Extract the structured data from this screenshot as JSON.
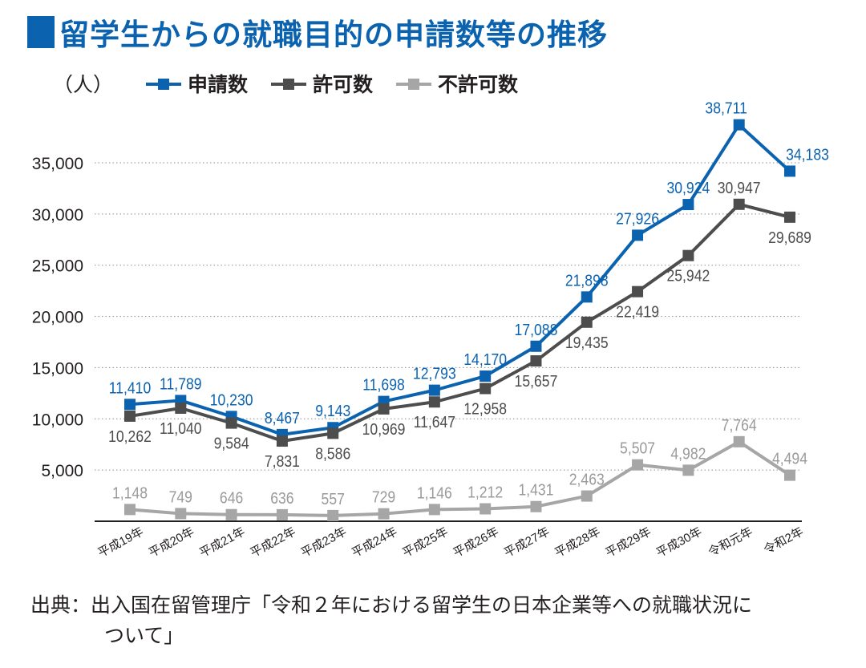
{
  "title": "留学生からの就職目的の申請数等の推移",
  "footer": {
    "line1": "出典：出入国在留管理庁「令和２年における留学生の日本企業等への就職状況に",
    "line2": "ついて」"
  },
  "chart_data": {
    "type": "line",
    "title": "留学生からの就職目的の申請数等の推移",
    "ylabel": "（人）",
    "xlabel": "",
    "ylim": [
      0,
      35000
    ],
    "yticks": [
      5000,
      10000,
      15000,
      20000,
      25000,
      30000,
      35000
    ],
    "ytick_labels": [
      "5,000",
      "10,000",
      "15,000",
      "20,000",
      "25,000",
      "30,000",
      "35,000"
    ],
    "grid": "horizontal-dotted",
    "legend": "top",
    "categories": [
      "平成19年",
      "平成20年",
      "平成21年",
      "平成22年",
      "平成23年",
      "平成24年",
      "平成25年",
      "平成26年",
      "平成27年",
      "平成28年",
      "平成29年",
      "平成30年",
      "令和元年",
      "令和2年"
    ],
    "series": [
      {
        "name": "申請数",
        "color": "#0b63b0",
        "label_color": "#0b63b0",
        "values": [
          11410,
          11789,
          10230,
          8467,
          9143,
          11698,
          12793,
          14170,
          17088,
          21898,
          27926,
          30924,
          38711,
          34183
        ],
        "labels": [
          "11,410",
          "11,789",
          "10,230",
          "8,467",
          "9,143",
          "11,698",
          "12,793",
          "14,170",
          "17,088",
          "21,898",
          "27,926",
          "30,924",
          "38,711",
          "34,183"
        ]
      },
      {
        "name": "許可数",
        "color": "#4d4d4d",
        "label_color": "#4d4d4d",
        "values": [
          10262,
          11040,
          9584,
          7831,
          8586,
          10969,
          11647,
          12958,
          15657,
          19435,
          22419,
          25942,
          30947,
          29689
        ],
        "labels": [
          "10,262",
          "11,040",
          "9,584",
          "7,831",
          "8,586",
          "10,969",
          "11,647",
          "12,958",
          "15,657",
          "19,435",
          "22,419",
          "25,942",
          "30,947",
          "29,689"
        ]
      },
      {
        "name": "不許可数",
        "color": "#a6a6a6",
        "label_color": "#9a9a9a",
        "values": [
          1148,
          749,
          646,
          636,
          557,
          729,
          1146,
          1212,
          1431,
          2463,
          5507,
          4982,
          7764,
          4494
        ],
        "labels": [
          "1,148",
          "749",
          "646",
          "636",
          "557",
          "729",
          "1,146",
          "1,212",
          "1,431",
          "2,463",
          "5,507",
          "4,982",
          "7,764",
          "4,494"
        ]
      }
    ]
  }
}
